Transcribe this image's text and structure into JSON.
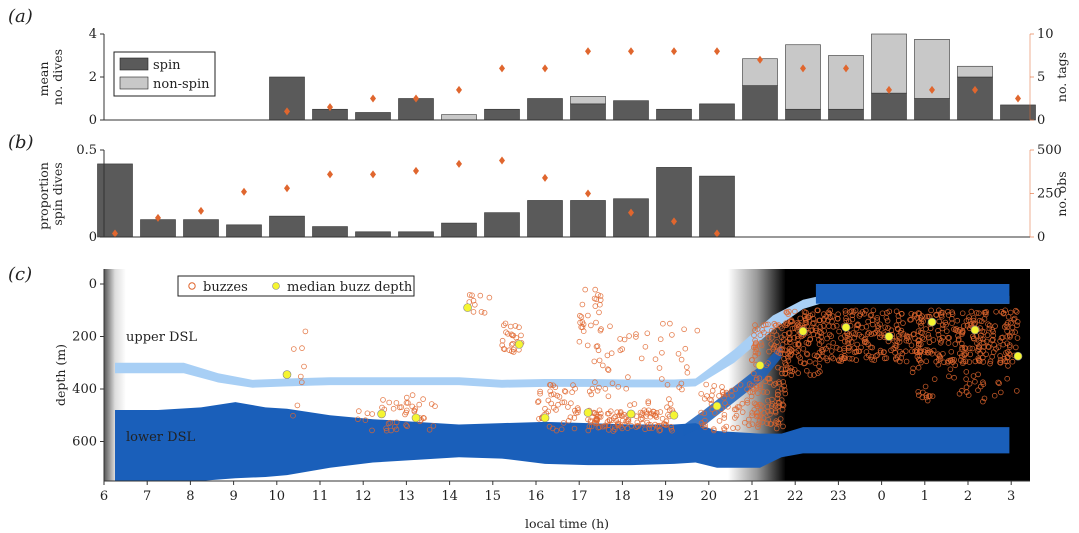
{
  "panels": {
    "a": "(a)",
    "b": "(b)",
    "c": "(c)"
  },
  "x_axis": {
    "label": "local time (h)",
    "tick_labels": [
      "6",
      "7",
      "8",
      "9",
      "10",
      "11",
      "12",
      "13",
      "14",
      "15",
      "16",
      "17",
      "18",
      "19",
      "20",
      "21",
      "22",
      "23",
      "0",
      "1",
      "2",
      "3"
    ]
  },
  "colors": {
    "spin": "#5a5a5a",
    "nonspin": "#c8c8c8",
    "diamond": "#e0662e",
    "lower_dsl": "#1a5fba",
    "upper_dsl": "#a8cff5",
    "night": "#000000",
    "median": "#f5f531"
  },
  "chart_data": [
    {
      "type": "bar",
      "panel": "a",
      "categories": [
        "6",
        "7",
        "8",
        "9",
        "10",
        "11",
        "12",
        "13",
        "14",
        "15",
        "16",
        "17",
        "18",
        "19",
        "20",
        "21",
        "22",
        "23",
        "0",
        "1",
        "2",
        "3"
      ],
      "stacked": true,
      "series": [
        {
          "name": "spin",
          "values": [
            0,
            0,
            0,
            0,
            2.0,
            0.5,
            0.35,
            1.0,
            0,
            0.5,
            1.0,
            0.75,
            0.9,
            0.5,
            0.75,
            1.6,
            0.5,
            0.5,
            1.25,
            1.0,
            2.0,
            0.7
          ]
        },
        {
          "name": "non-spin",
          "values": [
            0,
            0,
            0,
            0,
            0,
            0,
            0,
            0,
            0.25,
            0,
            0,
            0.35,
            0,
            0,
            0,
            1.25,
            3.0,
            2.5,
            2.75,
            2.75,
            0.5,
            0
          ]
        }
      ],
      "right_series": {
        "values": [
          null,
          null,
          null,
          null,
          1,
          1.5,
          2.5,
          2.5,
          3.5,
          6,
          6,
          8,
          8,
          8,
          8,
          7,
          6,
          6,
          3.5,
          3.5,
          3.5,
          2.5
        ]
      },
      "ylabel": "mean\nno. dives",
      "y2label": "no. tags",
      "ylim": [
        0,
        4
      ],
      "y2lim": [
        0,
        10
      ],
      "yticks": [
        "0",
        "2",
        "4"
      ],
      "y2ticks": [
        "0",
        "5",
        "10"
      ],
      "legend": {
        "position": "top-left",
        "items": [
          "spin",
          "non-spin"
        ]
      }
    },
    {
      "type": "bar",
      "panel": "b",
      "categories": [
        "6",
        "7",
        "8",
        "9",
        "10",
        "11",
        "12",
        "13",
        "14",
        "15",
        "16",
        "17",
        "18",
        "19",
        "20",
        "21",
        "22",
        "23",
        "0",
        "1",
        "2",
        "3"
      ],
      "series": [
        {
          "name": "spin",
          "values": [
            0.42,
            0.1,
            0.1,
            0.07,
            0.12,
            0.06,
            0.03,
            0.03,
            0.08,
            0.14,
            0.21,
            0.21,
            0.22,
            0.4,
            0.35,
            null,
            null,
            null,
            null,
            null,
            null,
            null
          ]
        }
      ],
      "right_series": {
        "values": [
          20,
          110,
          150,
          260,
          280,
          360,
          360,
          380,
          420,
          440,
          340,
          250,
          140,
          90,
          20,
          null,
          null,
          null,
          null,
          null,
          null,
          null
        ]
      },
      "ylabel": "proportion\nspin dives",
      "y2label": "no. obs",
      "ylim": [
        0,
        0.5
      ],
      "y2lim": [
        0,
        500
      ],
      "yticks": [
        "0",
        "0.5"
      ],
      "y2ticks": [
        "0",
        "250",
        "500"
      ]
    },
    {
      "type": "scatter",
      "panel": "c",
      "ylabel": "depth (m)",
      "ylim": [
        750,
        0
      ],
      "yticks": [
        "0",
        "200",
        "400",
        "600"
      ],
      "legend": {
        "position": "top-left",
        "items": [
          "buzzes",
          "median buzz depth"
        ]
      },
      "annotations": [
        "upper DSL",
        "lower DSL"
      ],
      "median_buzz_depth": {
        "x": [
          10,
          12.2,
          13,
          14.2,
          15.4,
          16,
          17,
          18,
          19,
          20,
          21,
          22,
          23,
          24,
          25,
          26,
          27
        ],
        "y": [
          345,
          495,
          510,
          90,
          230,
          510,
          490,
          495,
          500,
          465,
          310,
          180,
          165,
          200,
          145,
          175,
          275
        ]
      }
    }
  ]
}
